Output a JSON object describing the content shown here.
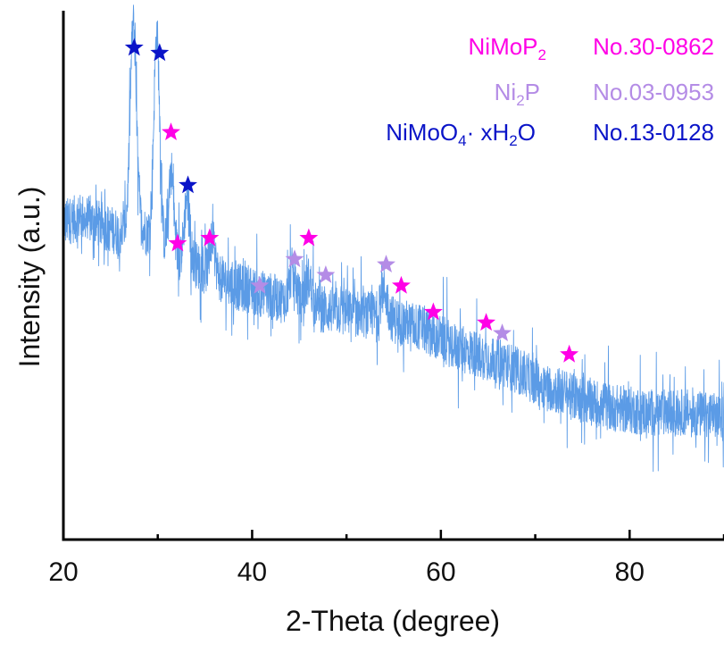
{
  "chart_data": {
    "type": "line",
    "xlabel": "2-Theta (degree)",
    "ylabel": "Intensity (a.u.)",
    "xlim": [
      20,
      90
    ],
    "ylim": [
      0,
      100
    ],
    "x_ticks": [
      "20",
      "40",
      "60",
      "80"
    ],
    "grid": false,
    "colors": {
      "trace": "#5B9BE6",
      "NiMoP2": "#FF00E6",
      "Ni2P": "#B48CE6",
      "NiMoO4": "#0A14C8",
      "axis": "#000000"
    },
    "legend": {
      "placement": "top-right",
      "entries": [
        {
          "key": "NiMoP2",
          "parts": [
            {
              "t": "NiMoP",
              "s": "base"
            },
            {
              "t": "2",
              "s": "sub"
            }
          ],
          "card": "No.30-0862"
        },
        {
          "key": "Ni2P",
          "parts": [
            {
              "t": "Ni",
              "s": "base"
            },
            {
              "t": "2",
              "s": "sub"
            },
            {
              "t": "P",
              "s": "base"
            }
          ],
          "card": "No.03-0953"
        },
        {
          "key": "NiMoO4",
          "parts": [
            {
              "t": "NiMoO",
              "s": "base"
            },
            {
              "t": "4",
              "s": "sub"
            },
            {
              "t": "· xH",
              "s": "base"
            },
            {
              "t": "2",
              "s": "sub"
            },
            {
              "t": "O",
              "s": "base"
            }
          ],
          "card": "No.13-0128"
        }
      ]
    },
    "baseline": [
      [
        20.0,
        60
      ],
      [
        22.0,
        61
      ],
      [
        26.0,
        58
      ],
      [
        28.0,
        60
      ],
      [
        30.0,
        55
      ],
      [
        34.0,
        52
      ],
      [
        38.0,
        48
      ],
      [
        42.0,
        46
      ],
      [
        46.0,
        44
      ],
      [
        50.0,
        43
      ],
      [
        54.0,
        42
      ],
      [
        58.0,
        40
      ],
      [
        62.0,
        36
      ],
      [
        66.0,
        34
      ],
      [
        70.0,
        30
      ],
      [
        74.0,
        27
      ],
      [
        78.0,
        25
      ],
      [
        82.0,
        24
      ],
      [
        86.0,
        24
      ],
      [
        90.0,
        23
      ]
    ],
    "peaks": [
      {
        "x": 27.4,
        "height": 38,
        "width": 0.45
      },
      {
        "x": 29.9,
        "height": 40,
        "width": 0.45
      },
      {
        "x": 31.4,
        "height": 16,
        "width": 0.4
      },
      {
        "x": 33.1,
        "height": 12,
        "width": 0.4
      },
      {
        "x": 35.8,
        "height": 6,
        "width": 0.4
      },
      {
        "x": 44.3,
        "height": 6,
        "width": 0.5
      },
      {
        "x": 46.0,
        "height": 5,
        "width": 0.5
      },
      {
        "x": 54.0,
        "height": 5,
        "width": 0.5
      }
    ],
    "markers": [
      {
        "phase": "NiMoO4",
        "x": 27.5,
        "y": 93
      },
      {
        "phase": "NiMoO4",
        "x": 30.2,
        "y": 92
      },
      {
        "phase": "NiMoP2",
        "x": 31.4,
        "y": 77
      },
      {
        "phase": "NiMoO4",
        "x": 33.2,
        "y": 67
      },
      {
        "phase": "NiMoP2",
        "x": 32.1,
        "y": 56
      },
      {
        "phase": "NiMoP2",
        "x": 35.5,
        "y": 57
      },
      {
        "phase": "Ni2P",
        "x": 40.8,
        "y": 48
      },
      {
        "phase": "Ni2P",
        "x": 44.5,
        "y": 53
      },
      {
        "phase": "NiMoP2",
        "x": 46.0,
        "y": 57
      },
      {
        "phase": "Ni2P",
        "x": 47.8,
        "y": 50
      },
      {
        "phase": "Ni2P",
        "x": 54.2,
        "y": 52
      },
      {
        "phase": "NiMoP2",
        "x": 55.8,
        "y": 48
      },
      {
        "phase": "NiMoP2",
        "x": 59.2,
        "y": 43
      },
      {
        "phase": "NiMoP2",
        "x": 64.8,
        "y": 41
      },
      {
        "phase": "Ni2P",
        "x": 66.5,
        "y": 39
      },
      {
        "phase": "NiMoP2",
        "x": 73.6,
        "y": 35
      }
    ]
  }
}
